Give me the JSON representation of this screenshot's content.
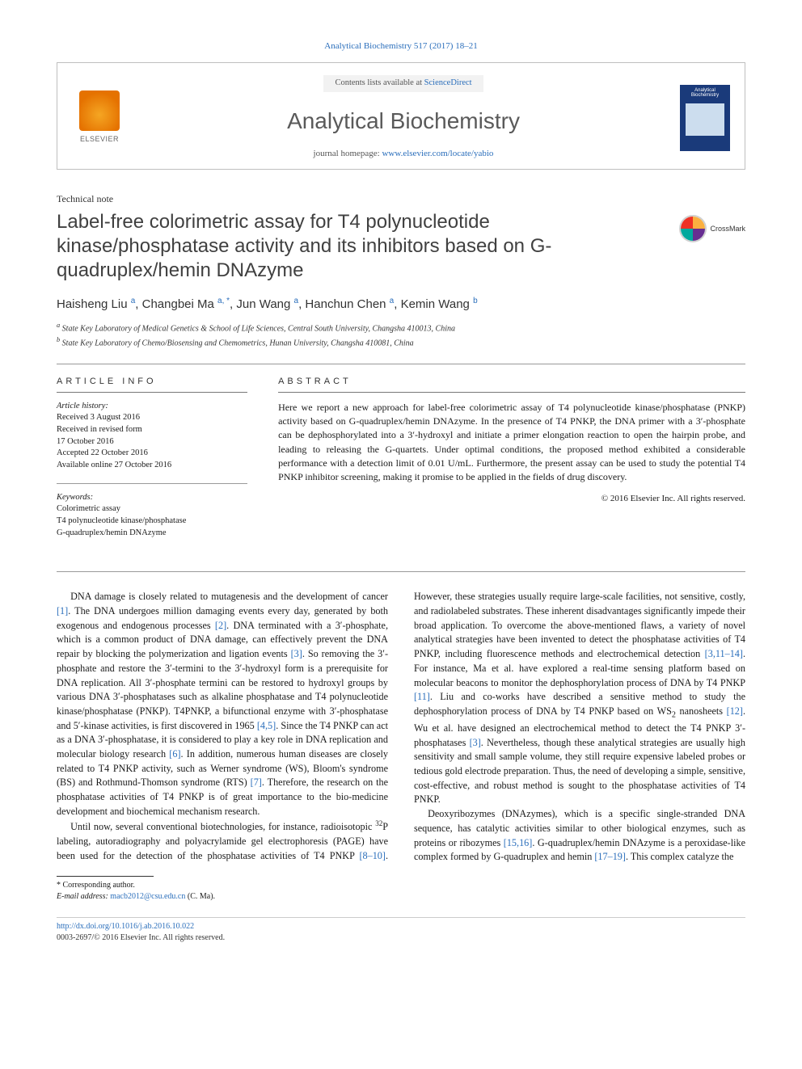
{
  "journal_ref": "Analytical Biochemistry 517 (2017) 18–21",
  "header": {
    "publisher": "ELSEVIER",
    "contents_prefix": "Contents lists available at ",
    "contents_link": "ScienceDirect",
    "journal_name": "Analytical Biochemistry",
    "homepage_prefix": "journal homepage: ",
    "homepage_url": "www.elsevier.com/locate/yabio",
    "cover_title": "Analytical Biochemistry"
  },
  "article_type": "Technical note",
  "title": "Label-free colorimetric assay for T4 polynucleotide kinase/phosphatase activity and its inhibitors based on G-quadruplex/hemin DNAzyme",
  "crossmark": "CrossMark",
  "authors_html": "Haisheng Liu <sup>a</sup>, Changbei Ma <sup>a, *</sup>, Jun Wang <sup>a</sup>, Hanchun Chen <sup>a</sup>, Kemin Wang <sup>b</sup>",
  "affiliations": {
    "a": "State Key Laboratory of Medical Genetics & School of Life Sciences, Central South University, Changsha 410013, China",
    "b": "State Key Laboratory of Chemo/Biosensing and Chemometrics, Hunan University, Changsha 410081, China"
  },
  "info_head": "ARTICLE INFO",
  "abs_head": "ABSTRACT",
  "history_label": "Article history:",
  "history": {
    "received": "Received 3 August 2016",
    "revised1": "Received in revised form",
    "revised2": "17 October 2016",
    "accepted": "Accepted 22 October 2016",
    "online": "Available online 27 October 2016"
  },
  "keywords_label": "Keywords:",
  "keywords": [
    "Colorimetric assay",
    "T4 polynucleotide kinase/phosphatase",
    "G-quadruplex/hemin DNAzyme"
  ],
  "abstract": "Here we report a new approach for label-free colorimetric assay of T4 polynucleotide kinase/phosphatase (PNKP) activity based on G-quadruplex/hemin DNAzyme. In the presence of T4 PNKP, the DNA primer with a 3′-phosphate can be dephosphorylated into a 3′-hydroxyl and initiate a primer elongation reaction to open the hairpin probe, and leading to releasing the G-quartets. Under optimal conditions, the proposed method exhibited a considerable performance with a detection limit of 0.01 U/mL. Furthermore, the present assay can be used to study the potential T4 PNKP inhibitor screening, making it promise to be applied in the fields of drug discovery.",
  "copyright": "© 2016 Elsevier Inc. All rights reserved.",
  "body": {
    "p1a": "DNA damage is closely related to mutagenesis and the development of cancer ",
    "r1": "[1]",
    "p1b": ". The DNA undergoes million damaging events every day, generated by both exogenous and endogenous processes ",
    "r2": "[2]",
    "p1c": ". DNA terminated with a 3′-phosphate, which is a common product of DNA damage, can effectively prevent the DNA repair by blocking the polymerization and ligation events ",
    "r3": "[3]",
    "p1d": ". So removing the 3′-phosphate and restore the 3′-termini to the 3′-hydroxyl form is a prerequisite for DNA replication. All 3′-phosphate termini can be restored to hydroxyl groups by various DNA 3′-phosphatases such as alkaline phosphatase and T4 polynucleotide kinase/phosphatase (PNKP). T4PNKP, a bifunctional enzyme with 3′-phosphatase and 5′-kinase activities, is first discovered in 1965 ",
    "r45": "[4,5]",
    "p1e": ". Since the T4 PNKP can act as a DNA 3′-phosphatase, it is considered to play a key role in DNA replication and molecular biology research ",
    "r6": "[6]",
    "p1f": ". In addition, numerous human diseases are closely related to T4 PNKP activity, such as Werner syndrome (WS), Bloom's syndrome (BS) and Rothmund-Thomson syndrome (RTS) ",
    "r7": "[7]",
    "p1g": ". Therefore, the research on the phosphatase activities of T4 PNKP is of great importance to the bio-medicine development and biochemical mechanism research.",
    "p2a": "Until now, several conventional biotechnologies, for instance, radioisotopic ",
    "iso": "32",
    "p2b": "P labeling, autoradiography and polyacrylamide gel electrophoresis (PAGE) have been used for the detection of the phosphatase activities of T4 PNKP ",
    "r810": "[8–10]",
    "p2c": ". However, these strategies usually require large-scale facilities, not sensitive, costly, and radiolabeled substrates. These inherent disadvantages significantly impede their broad application. To overcome the above-mentioned flaws, a variety of novel analytical strategies have been invented to detect the phosphatase activities of T4 PNKP, including fluorescence methods and electrochemical detection ",
    "r31114": "[3,11–14]",
    "p2d": ". For instance, Ma et al. have explored a real-time sensing platform based on molecular beacons to monitor the dephosphorylation process of DNA by T4 PNKP ",
    "r11": "[11]",
    "p2e": ". Liu and co-works have described a sensitive method to study the dephosphorylation process of DNA by T4 PNKP based on WS",
    "sub2": "2",
    "p2f": " nanosheets ",
    "r12": "[12]",
    "p2g": ". Wu et al. have designed an electrochemical method to detect the T4 PNKP 3′-phosphatases ",
    "r3b": "[3]",
    "p2h": ". Nevertheless, though these analytical strategies are usually high sensitivity and small sample volume, they still require expensive labeled probes or tedious gold electrode preparation. Thus, the need of developing a simple, sensitive, cost-effective, and robust method is sought to the phosphatase activities of T4 PNKP.",
    "p3a": "Deoxyribozymes (DNAzymes), which is a specific single-stranded DNA sequence, has catalytic activities similar to other biological enzymes, such as proteins or ribozymes ",
    "r1516": "[15,16]",
    "p3b": ". G-quadruplex/hemin DNAzyme is a peroxidase-like complex formed by G-quadruplex and hemin ",
    "r1719": "[17–19]",
    "p3c": ". This complex catalyze the"
  },
  "footnote": {
    "corr": "* Corresponding author.",
    "email_label": "E-mail address:",
    "email": "macb2012@csu.edu.cn",
    "email_who": " (C. Ma)."
  },
  "footer": {
    "doi": "http://dx.doi.org/10.1016/j.ab.2016.10.022",
    "issn_line": "0003-2697/© 2016 Elsevier Inc. All rights reserved."
  },
  "colors": {
    "link": "#2a6ebb",
    "rule": "#999999",
    "title_gray": "#404040"
  }
}
